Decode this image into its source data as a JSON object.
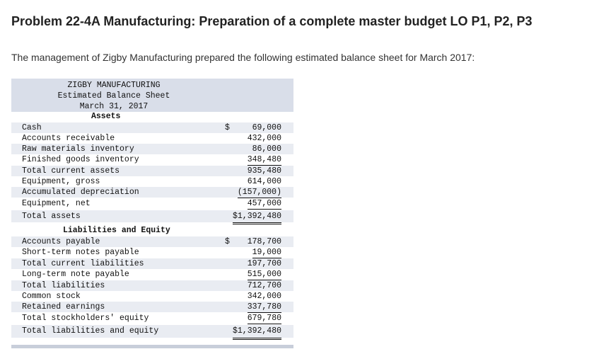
{
  "page": {
    "title": "Problem 22-4A Manufacturing: Preparation of a complete master budget LO P1, P2, P3",
    "intro": "The management of Zigby Manufacturing prepared the following estimated balance sheet for March 2017:"
  },
  "sheet": {
    "company": "ZIGBY MANUFACTURING",
    "statement": "Estimated Balance Sheet",
    "date": "March 31, 2017",
    "assets_heading": "Assets",
    "liabilities_heading": "Liabilities and Equity",
    "assets": [
      {
        "label": "Cash",
        "dollar": "$",
        "value": "69,000"
      },
      {
        "label": "Accounts receivable",
        "dollar": "",
        "value": "432,000"
      },
      {
        "label": "Raw materials inventory",
        "dollar": "",
        "value": "86,000"
      },
      {
        "label": "Finished goods inventory",
        "dollar": "",
        "value": "348,480"
      },
      {
        "label": "Total current assets",
        "dollar": "",
        "value": "935,480"
      },
      {
        "label": "Equipment, gross",
        "dollar": "",
        "value": "614,000"
      },
      {
        "label": "Accumulated depreciation",
        "dollar": "",
        "value": "(157,000)"
      },
      {
        "label": "Equipment, net",
        "dollar": "",
        "value": "457,000"
      },
      {
        "label": "Total assets",
        "dollar": "",
        "value": "$1,392,480"
      }
    ],
    "liabilities": [
      {
        "label": "Accounts payable",
        "dollar": "$",
        "value": "178,700"
      },
      {
        "label": "Short-term notes payable",
        "dollar": "",
        "value": "19,000"
      },
      {
        "label": "Total current liabilities",
        "dollar": "",
        "value": "197,700"
      },
      {
        "label": "Long-term note payable",
        "dollar": "",
        "value": "515,000"
      },
      {
        "label": "Total liabilities",
        "dollar": "",
        "value": "712,700"
      },
      {
        "label": "Common stock",
        "dollar": "",
        "value": "342,000"
      },
      {
        "label": "Retained earnings",
        "dollar": "",
        "value": "337,780"
      },
      {
        "label": "Total stockholders' equity",
        "dollar": "",
        "value": "679,780"
      },
      {
        "label": "Total liabilities and equity",
        "dollar": "",
        "value": "$1,392,480"
      }
    ]
  }
}
